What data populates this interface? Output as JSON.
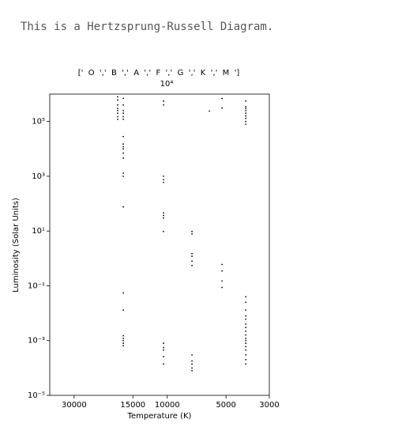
{
  "note": "This is a Hertzsprung-Russell Diagram.",
  "chart_data": {
    "type": "scatter",
    "top_label": "['  O  ','  B  ','  A  ','  F  ','  G  ','  K  ','  M  ']",
    "top_offset": "10⁴",
    "xlabel": "Temperature (K)",
    "ylabel": "Luminosity (Solar Units)",
    "xscale": "log",
    "yscale": "log",
    "color": "#000000",
    "xlim": [
      40000,
      3000
    ],
    "ylim": [
      1e-05,
      1000000
    ],
    "xticks": [
      30000,
      15000,
      10000,
      5000,
      3000
    ],
    "yticks": [
      {
        "value": 1e-05,
        "label": "10⁻⁵"
      },
      {
        "value": 0.001,
        "label": "10⁻³"
      },
      {
        "value": 0.1,
        "label": "10⁻¹"
      },
      {
        "value": 10,
        "label": "10¹"
      },
      {
        "value": 1000,
        "label": "10³"
      },
      {
        "value": 100000,
        "label": "10⁵"
      }
    ],
    "x": [
      17950,
      17950,
      17950,
      17950,
      17950,
      17950,
      17950,
      17950,
      16800,
      16800,
      16800,
      16800,
      16800,
      16800,
      16800,
      16800,
      16800,
      16800,
      16800,
      16800,
      16800,
      16800,
      16800,
      16800,
      16800,
      16800,
      16800,
      16800,
      16800,
      16800,
      10450,
      10450,
      10450,
      10450,
      10450,
      10450,
      10450,
      10450,
      10450,
      10450,
      10450,
      10450,
      10450,
      10450,
      7470,
      7470,
      7470,
      7470,
      7470,
      7470,
      7470,
      7470,
      7470,
      7470,
      7470,
      6080,
      5240,
      5240,
      5240,
      5240,
      5240,
      5240,
      3960,
      3960,
      3960,
      3960,
      3960,
      3960,
      3960,
      3960,
      3960,
      3960,
      3960,
      3960,
      3960,
      3960,
      3960,
      3960,
      3960,
      3960,
      3960,
      3960,
      3960,
      3960,
      3960,
      3960,
      3960,
      3960
    ],
    "y": [
      800000,
      600000,
      400000,
      300000,
      250000,
      200000,
      150000,
      120000,
      700000,
      400000,
      250000,
      200000,
      150000,
      120000,
      28000,
      15000,
      12000,
      10000,
      7000,
      4600,
      1300,
      1000,
      76,
      0.055,
      0.013,
      0.0015,
      0.0012,
      0.001,
      0.0008,
      0.00065,
      560000,
      400000,
      1000,
      750,
      600,
      46,
      37,
      30,
      9.6,
      0.0008,
      0.00055,
      0.00045,
      0.00026,
      0.00014,
      9.6,
      7.8,
      1.5,
      1.2,
      0.8,
      0.55,
      0.0003,
      0.00018,
      0.00014,
      0.0001,
      8e-05,
      240000,
      690000,
      310000,
      0.6,
      0.35,
      0.15,
      0.087,
      560000,
      350000,
      300000,
      250000,
      200000,
      160000,
      130000,
      100000,
      80000,
      0.04,
      0.025,
      0.013,
      0.008,
      0.006,
      0.004,
      0.003,
      0.0022,
      0.0016,
      0.0012,
      0.001,
      0.0008,
      0.0006,
      0.00045,
      0.0003,
      0.0002,
      0.00014
    ]
  }
}
